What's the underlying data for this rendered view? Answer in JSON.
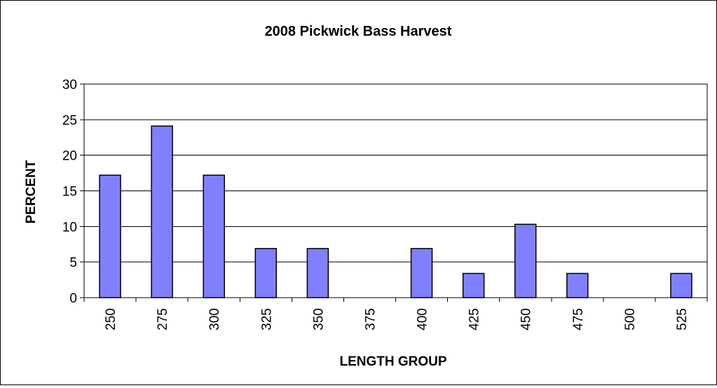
{
  "chart_data": {
    "type": "bar",
    "title": "2008 Pickwick Bass Harvest",
    "xlabel": "LENGTH GROUP",
    "ylabel": "PERCENT",
    "categories": [
      "250",
      "275",
      "300",
      "325",
      "350",
      "375",
      "400",
      "425",
      "450",
      "475",
      "500",
      "525"
    ],
    "values": [
      17.2,
      24.1,
      17.2,
      6.9,
      6.9,
      0,
      6.9,
      3.4,
      10.3,
      3.4,
      0,
      3.4
    ],
    "ylim": [
      0,
      30
    ],
    "yticks": [
      "0",
      "5",
      "10",
      "15",
      "20",
      "25",
      "30"
    ],
    "grid": true,
    "legend": "none",
    "colors": {
      "bar": "#8080ff",
      "bar_stroke": "#000000",
      "grid": "#000000",
      "frame": "#000000"
    }
  }
}
